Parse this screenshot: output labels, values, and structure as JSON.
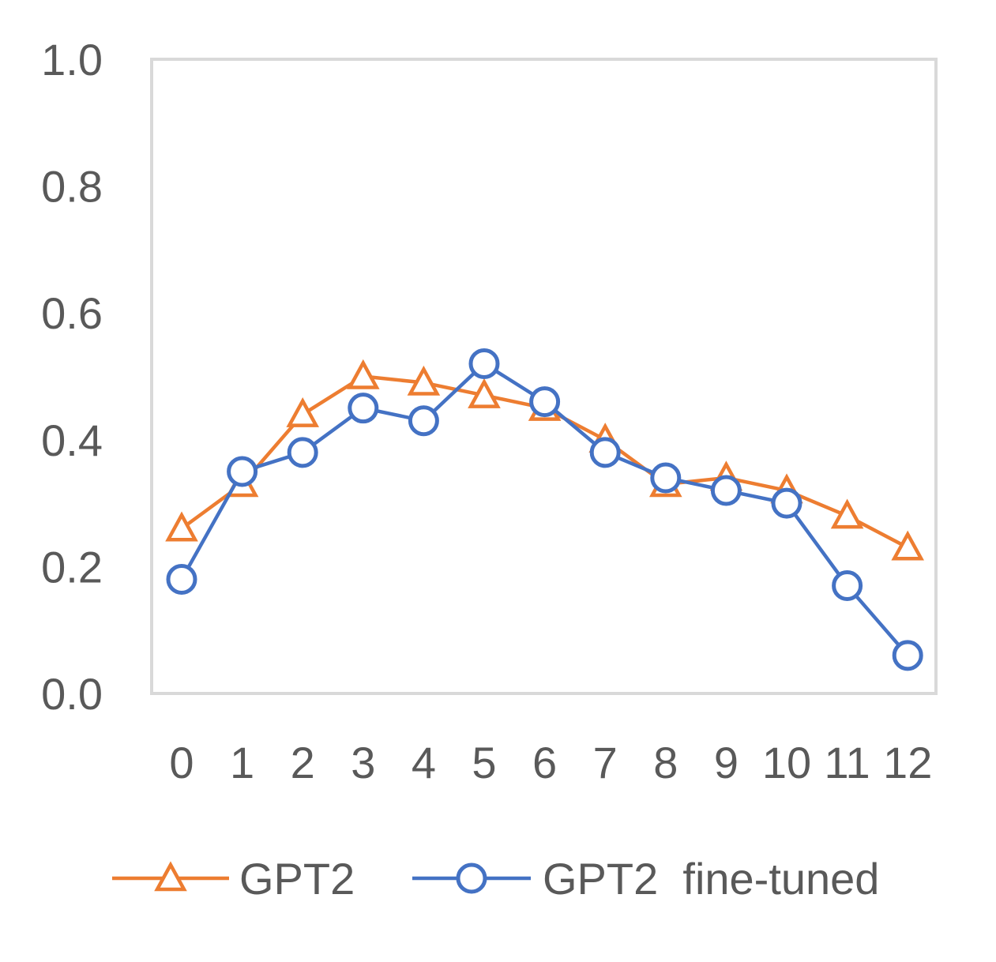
{
  "chart_data": {
    "type": "line",
    "title": "",
    "xlabel": "",
    "ylabel": "",
    "categories": [
      "0",
      "1",
      "2",
      "3",
      "4",
      "5",
      "6",
      "7",
      "8",
      "9",
      "10",
      "11",
      "12"
    ],
    "y_ticks": [
      "0.0",
      "0.2",
      "0.4",
      "0.6",
      "0.8",
      "1.0"
    ],
    "ylim": [
      0,
      1.0
    ],
    "grid": false,
    "legend_position": "bottom",
    "series": [
      {
        "name": "GPT2",
        "marker": "triangle",
        "color": "#ED7D31",
        "values": [
          0.26,
          0.33,
          0.44,
          0.5,
          0.49,
          0.47,
          0.45,
          0.4,
          0.33,
          0.34,
          0.32,
          0.28,
          0.23
        ]
      },
      {
        "name": "GPT2  fine-tuned",
        "marker": "circle",
        "color": "#4472C4",
        "values": [
          0.18,
          0.35,
          0.38,
          0.45,
          0.43,
          0.52,
          0.46,
          0.38,
          0.34,
          0.32,
          0.3,
          0.17,
          0.06
        ]
      }
    ]
  }
}
